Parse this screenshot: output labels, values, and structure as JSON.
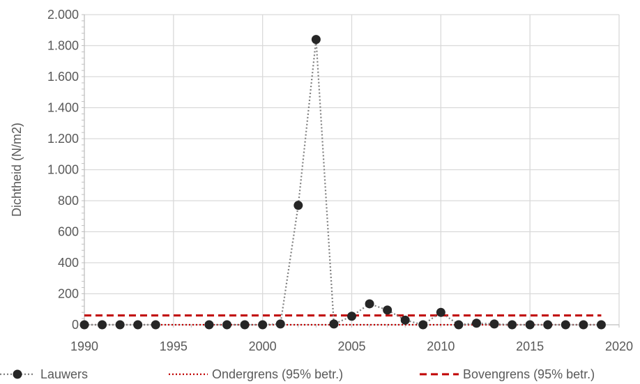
{
  "chart_data": {
    "type": "line",
    "title": "",
    "xlabel": "",
    "ylabel": "Dichtheid  (N/m2)",
    "xlim": [
      1990,
      2020
    ],
    "ylim": [
      0,
      2000
    ],
    "x_ticks": [
      1990,
      1995,
      2000,
      2005,
      2010,
      2015,
      2020
    ],
    "x_tick_labels": [
      "1990",
      "1995",
      "2000",
      "2005",
      "2010",
      "2015",
      "2020"
    ],
    "y_ticks": [
      0,
      200,
      400,
      600,
      800,
      1000,
      1200,
      1400,
      1600,
      1800,
      2000
    ],
    "y_tick_labels": [
      "0",
      "200",
      "400",
      "600",
      "800",
      "1.000",
      "1.200",
      "1.400",
      "1.600",
      "1.800",
      "2.000"
    ],
    "grid": true,
    "legend_position": "bottom",
    "series": [
      {
        "name": "Lauwers",
        "style": "dotted-with-markers",
        "color": "#262626",
        "line_color": "#7f7f7f",
        "segments": [
          {
            "x": [
              1990,
              1991,
              1992,
              1993,
              1994
            ],
            "y": [
              0,
              0,
              0,
              0,
              0
            ]
          },
          {
            "x": [
              1997,
              1998,
              1999,
              2000,
              2001,
              2002,
              2003,
              2004,
              2005,
              2006,
              2007,
              2008,
              2009,
              2010,
              2011,
              2012,
              2013,
              2014,
              2015,
              2016,
              2017,
              2018,
              2019
            ],
            "y": [
              0,
              0,
              0,
              0,
              5,
              770,
              1840,
              5,
              55,
              135,
              95,
              30,
              0,
              80,
              0,
              10,
              5,
              0,
              0,
              0,
              0,
              0,
              0
            ]
          }
        ]
      },
      {
        "name": "Ondergrens (95% betr.)",
        "style": "dotted",
        "color": "#c00000",
        "x": [
          1990,
          2019
        ],
        "y": [
          0,
          0
        ]
      },
      {
        "name": "Bovengrens (95% betr.)",
        "style": "dashed",
        "color": "#c00000",
        "x": [
          1990,
          2019
        ],
        "y": [
          60,
          60
        ]
      }
    ]
  }
}
